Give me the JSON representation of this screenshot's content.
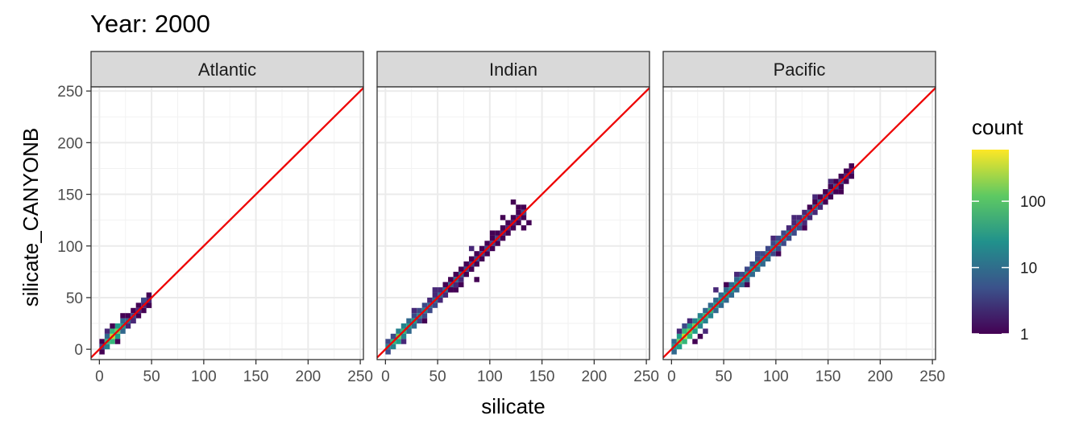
{
  "chart_data": {
    "type": "heatmap",
    "title": "Year: 2000",
    "xlabel": "silicate",
    "ylabel": "silicate_CANYONB",
    "xlim": [
      -8,
      253
    ],
    "ylim": [
      -10,
      254
    ],
    "x_ticks": [
      0,
      50,
      100,
      150,
      200,
      250
    ],
    "y_ticks": [
      0,
      50,
      100,
      150,
      200,
      250
    ],
    "x_tick_labels": [
      "0",
      "50",
      "100",
      "150",
      "200",
      "250"
    ],
    "y_tick_labels": [
      "0",
      "50",
      "100",
      "150",
      "200",
      "250"
    ],
    "grid": true,
    "reference_line": {
      "slope": 1,
      "intercept": 0,
      "color": "#ee0000"
    },
    "bin_width": 5,
    "color_scale": {
      "name": "count",
      "scale": "log10",
      "palette": "viridis",
      "range": [
        1,
        600
      ],
      "breaks": [
        1,
        10,
        100
      ],
      "break_labels": [
        "1",
        "10",
        "100"
      ]
    },
    "panels": [
      {
        "label": "Atlantic",
        "diagonal_bins": [
          {
            "x_start": 0,
            "x_end": 45,
            "counts": [
              3,
              60,
              300,
              150,
              40,
              8,
              3,
              2,
              2
            ]
          }
        ],
        "off_diagonal_bins": [
          {
            "x": 5,
            "y": 15,
            "count": 2
          },
          {
            "x": 10,
            "y": 20,
            "count": 1
          },
          {
            "x": 15,
            "y": 5,
            "count": 1
          },
          {
            "x": 20,
            "y": 30,
            "count": 1
          },
          {
            "x": 30,
            "y": 25,
            "count": 2
          },
          {
            "x": 40,
            "y": 45,
            "count": 3
          },
          {
            "x": 45,
            "y": 40,
            "count": 1
          }
        ]
      },
      {
        "label": "Indian",
        "diagonal_bins": [
          {
            "x_start": 0,
            "x_end": 130,
            "counts": [
              20,
              60,
              120,
              80,
              40,
              30,
              20,
              15,
              12,
              10,
              9,
              8,
              7,
              6,
              6,
              5,
              5,
              4,
              4,
              3,
              3,
              3,
              2,
              2,
              2,
              2,
              2
            ]
          }
        ],
        "off_diagonal_bins": [
          {
            "x": 5,
            "y": 10,
            "count": 3
          },
          {
            "x": 15,
            "y": 5,
            "count": 2
          },
          {
            "x": 25,
            "y": 35,
            "count": 2
          },
          {
            "x": 35,
            "y": 25,
            "count": 1
          },
          {
            "x": 45,
            "y": 55,
            "count": 2
          },
          {
            "x": 55,
            "y": 60,
            "count": 1
          },
          {
            "x": 60,
            "y": 55,
            "count": 1
          },
          {
            "x": 65,
            "y": 55,
            "count": 1
          },
          {
            "x": 70,
            "y": 60,
            "count": 1
          },
          {
            "x": 85,
            "y": 65,
            "count": 1
          },
          {
            "x": 80,
            "y": 95,
            "count": 2
          },
          {
            "x": 100,
            "y": 110,
            "count": 1
          },
          {
            "x": 110,
            "y": 125,
            "count": 1
          },
          {
            "x": 120,
            "y": 140,
            "count": 1
          },
          {
            "x": 125,
            "y": 135,
            "count": 1
          },
          {
            "x": 130,
            "y": 130,
            "count": 3
          },
          {
            "x": 135,
            "y": 120,
            "count": 1
          },
          {
            "x": 130,
            "y": 115,
            "count": 1
          }
        ]
      },
      {
        "label": "Pacific",
        "diagonal_bins": [
          {
            "x_start": 0,
            "x_end": 170,
            "counts": [
              40,
              150,
              300,
              200,
              120,
              80,
              60,
              50,
              45,
              40,
              38,
              36,
              34,
              32,
              30,
              28,
              26,
              24,
              22,
              20,
              18,
              16,
              14,
              12,
              10,
              9,
              8,
              7,
              6,
              5,
              4,
              3,
              3,
              2,
              2
            ]
          }
        ],
        "off_diagonal_bins": [
          {
            "x": 5,
            "y": 15,
            "count": 2
          },
          {
            "x": 10,
            "y": 20,
            "count": 3
          },
          {
            "x": 15,
            "y": 25,
            "count": 2
          },
          {
            "x": 20,
            "y": 5,
            "count": 1
          },
          {
            "x": 25,
            "y": 10,
            "count": 1
          },
          {
            "x": 30,
            "y": 15,
            "count": 2
          },
          {
            "x": 40,
            "y": 55,
            "count": 2
          },
          {
            "x": 50,
            "y": 60,
            "count": 1
          },
          {
            "x": 60,
            "y": 70,
            "count": 2
          },
          {
            "x": 70,
            "y": 60,
            "count": 1
          },
          {
            "x": 80,
            "y": 90,
            "count": 3
          },
          {
            "x": 95,
            "y": 105,
            "count": 2
          },
          {
            "x": 100,
            "y": 90,
            "count": 1
          },
          {
            "x": 115,
            "y": 125,
            "count": 2
          },
          {
            "x": 125,
            "y": 115,
            "count": 1
          },
          {
            "x": 135,
            "y": 145,
            "count": 2
          },
          {
            "x": 150,
            "y": 160,
            "count": 2
          },
          {
            "x": 160,
            "y": 150,
            "count": 1
          },
          {
            "x": 170,
            "y": 170,
            "count": 2
          }
        ]
      }
    ]
  }
}
